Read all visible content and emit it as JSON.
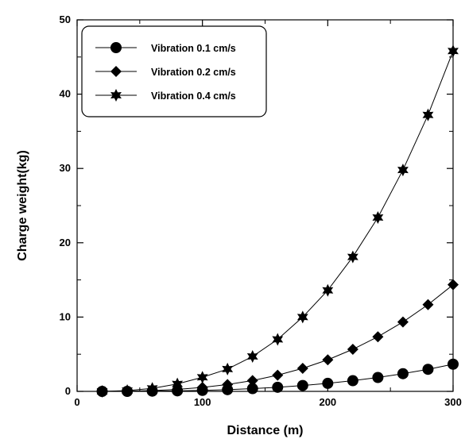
{
  "chart_data": {
    "type": "line",
    "xlabel": "Distance (m)",
    "ylabel": "Charge weight(kg)",
    "xlim": [
      0,
      300
    ],
    "ylim": [
      0,
      50
    ],
    "xticks": [
      0,
      100,
      200,
      300
    ],
    "yticks": [
      0,
      10,
      20,
      30,
      40,
      50
    ],
    "grid": false,
    "legend_position": "top-left",
    "x": [
      20,
      40,
      60,
      80,
      100,
      120,
      140,
      160,
      180,
      200,
      220,
      240,
      260,
      280,
      300
    ],
    "series": [
      {
        "name": "Vibration 0.1 cm/s",
        "marker": "circle",
        "values": [
          0.0,
          0.0,
          0.03,
          0.07,
          0.13,
          0.23,
          0.37,
          0.55,
          0.79,
          1.08,
          1.44,
          1.87,
          2.38,
          2.97,
          3.66
        ]
      },
      {
        "name": "Vibration 0.2 cm/s",
        "marker": "diamond",
        "values": [
          0.0,
          0.03,
          0.11,
          0.27,
          0.53,
          0.92,
          1.46,
          2.18,
          3.1,
          4.25,
          5.66,
          7.35,
          9.34,
          11.67,
          14.35
        ]
      },
      {
        "name": "Vibration 0.4 cm/s",
        "marker": "star",
        "values": [
          0.0,
          0.1,
          0.4,
          1.0,
          1.9,
          3.0,
          4.7,
          7.0,
          10.0,
          13.6,
          18.1,
          23.4,
          29.8,
          37.2,
          45.8
        ]
      }
    ]
  }
}
